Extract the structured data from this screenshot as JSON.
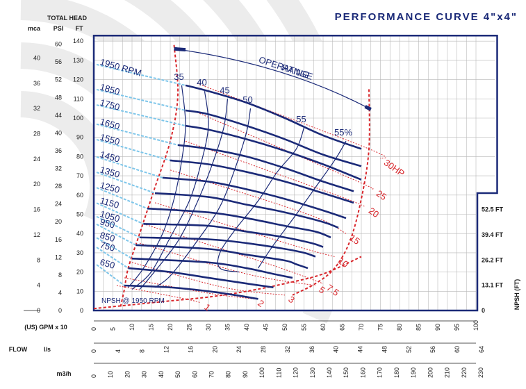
{
  "chart_data": {
    "type": "line",
    "title": "PERFORMANCE CURVE  4\"x4\"",
    "axis_headers": {
      "total_head": "TOTAL HEAD",
      "mca": "mca",
      "psi": "PSI",
      "ft": "FT",
      "flow": "FLOW",
      "gpm": "(US) GPM  x 10",
      "ls": "l/s",
      "m3h": "m3/h",
      "npsh": "NPSH (FT)"
    },
    "head_ft_ticks": [
      0,
      10,
      20,
      30,
      40,
      50,
      60,
      70,
      80,
      90,
      100,
      110,
      120,
      130,
      140
    ],
    "psi_ticks": [
      0,
      4,
      8,
      12,
      16,
      20,
      24,
      28,
      32,
      36,
      40,
      44,
      48,
      52,
      56,
      60
    ],
    "mca_ticks": [
      0,
      4,
      8,
      12,
      16,
      20,
      24,
      28,
      32,
      36,
      40
    ],
    "gpm_ticks": [
      0,
      5,
      10,
      15,
      20,
      25,
      30,
      35,
      40,
      45,
      50,
      55,
      60,
      65,
      70,
      75,
      80,
      85,
      90,
      95,
      100
    ],
    "ls_ticks": [
      0,
      4,
      8,
      12,
      16,
      20,
      24,
      28,
      32,
      36,
      40,
      44,
      48,
      52,
      56,
      60,
      64
    ],
    "m3h_ticks": [
      0,
      10,
      20,
      30,
      40,
      50,
      60,
      70,
      80,
      90,
      100,
      110,
      120,
      130,
      140,
      150,
      160,
      170,
      180,
      190,
      200,
      210,
      220,
      230
    ],
    "npsh_ticks": [
      {
        "label": "52.5 FT",
        "value": 52.5
      },
      {
        "label": "39.4 FT",
        "value": 39.4
      },
      {
        "label": "26.2 FT",
        "value": 26.2
      },
      {
        "label": "13.1 FT",
        "value": 13.1
      },
      {
        "label": "0",
        "value": 0
      }
    ],
    "operating_range_label": [
      "OPERATING",
      "RANGE"
    ],
    "npsh_label": "NPSH @ 1950 RPM",
    "rpm_curves": [
      {
        "label": "1950 RPM",
        "x": [
          24,
          30,
          40,
          50,
          60,
          70
        ],
        "y": [
          117,
          114,
          108,
          100,
          91,
          84
        ]
      },
      {
        "label": "1850",
        "x": [
          24,
          30,
          40,
          50,
          60,
          70
        ],
        "y": [
          104,
          102,
          96,
          89,
          81,
          75
        ]
      },
      {
        "label": "1750",
        "x": [
          24,
          30,
          40,
          50,
          60,
          70
        ],
        "y": [
          96,
          94,
          89,
          83,
          76,
          68
        ]
      },
      {
        "label": "1650",
        "x": [
          22,
          30,
          40,
          50,
          60,
          68
        ],
        "y": [
          86,
          84,
          80,
          74,
          67,
          62
        ]
      },
      {
        "label": "1550",
        "x": [
          20,
          30,
          40,
          50,
          60,
          68
        ],
        "y": [
          78,
          76,
          72,
          67,
          61,
          56
        ]
      },
      {
        "label": "1450",
        "x": [
          18,
          30,
          40,
          50,
          60,
          66
        ],
        "y": [
          69,
          67,
          63,
          58,
          52,
          48
        ]
      },
      {
        "label": "1350",
        "x": [
          16,
          30,
          40,
          50,
          60,
          64
        ],
        "y": [
          61,
          59,
          55,
          51,
          46,
          43
        ]
      },
      {
        "label": "1250",
        "x": [
          14,
          30,
          40,
          50,
          58,
          62
        ],
        "y": [
          53,
          51,
          48,
          44,
          41,
          38
        ]
      },
      {
        "label": "1150",
        "x": [
          13,
          30,
          40,
          50,
          57,
          60
        ],
        "y": [
          45,
          44,
          41,
          38,
          35,
          33
        ]
      },
      {
        "label": "1050",
        "x": [
          12,
          30,
          40,
          50,
          55,
          58
        ],
        "y": [
          38,
          37,
          35,
          32,
          30,
          28
        ]
      },
      {
        "label": "950",
        "x": [
          11,
          30,
          40,
          50,
          53,
          56
        ],
        "y": [
          34,
          32,
          29,
          26,
          24,
          22
        ]
      },
      {
        "label": "850",
        "x": [
          10,
          30,
          40,
          47,
          52
        ],
        "y": [
          27,
          25,
          22,
          19,
          17
        ]
      },
      {
        "label": "750",
        "x": [
          9,
          20,
          30,
          40,
          47
        ],
        "y": [
          22,
          20,
          17,
          14,
          12
        ]
      },
      {
        "label": "650",
        "x": [
          8,
          20,
          30,
          37,
          43
        ],
        "y": [
          13,
          12,
          10,
          8,
          6
        ]
      }
    ],
    "efficiency_curves": [
      {
        "label": "35",
        "x": [
          23,
          24,
          23,
          21,
          18,
          13,
          9
        ],
        "y": [
          117,
          97,
          78,
          58,
          40,
          22,
          12
        ]
      },
      {
        "label": "40",
        "x": [
          29,
          30,
          28,
          25,
          20,
          15,
          10
        ],
        "y": [
          114,
          96,
          76,
          57,
          38,
          20,
          11
        ]
      },
      {
        "label": "45",
        "x": [
          35,
          34,
          31,
          27,
          22,
          15,
          12
        ],
        "y": [
          110,
          95,
          76,
          56,
          36,
          18,
          11
        ]
      },
      {
        "label": "50",
        "x": [
          41,
          40,
          37,
          33,
          27,
          20,
          16
        ],
        "y": [
          105,
          93,
          74,
          54,
          36,
          18,
          12
        ]
      },
      {
        "label": "55",
        "x": [
          55,
          53,
          48,
          43,
          37,
          33,
          33,
          38
        ],
        "y": [
          95,
          84,
          72,
          57,
          42,
          30,
          22,
          20
        ]
      },
      {
        "label": "55%",
        "x": [
          66,
          63,
          58,
          53,
          47,
          43
        ],
        "y": [
          88,
          78,
          64,
          50,
          34,
          22
        ]
      }
    ],
    "hp_curves": [
      {
        "label": "30HP",
        "x": [
          27,
          72,
          75
        ],
        "y": [
          118,
          84,
          79
        ]
      },
      {
        "label": "25",
        "x": [
          27,
          68,
          73
        ],
        "y": [
          103,
          68,
          63
        ]
      },
      {
        "label": "20",
        "x": [
          24,
          62,
          71
        ],
        "y": [
          88,
          61,
          54
        ]
      },
      {
        "label": "15",
        "x": [
          20,
          56,
          66
        ],
        "y": [
          73,
          50,
          40
        ]
      },
      {
        "label": "10",
        "x": [
          16,
          52,
          63
        ],
        "y": [
          56,
          34,
          28
        ]
      },
      {
        "label": "7.5",
        "x": [
          13,
          46,
          60
        ],
        "y": [
          45,
          24,
          14
        ]
      },
      {
        "label": "5",
        "x": [
          12,
          40,
          58
        ],
        "y": [
          35,
          19,
          13
        ]
      },
      {
        "label": "3",
        "x": [
          10,
          34,
          50
        ],
        "y": [
          25,
          12,
          8
        ]
      },
      {
        "label": "2",
        "x": [
          8,
          30,
          42
        ],
        "y": [
          17,
          9,
          6
        ]
      },
      {
        "label": "1",
        "x": [
          6,
          24,
          28
        ],
        "y": [
          13,
          6,
          4
        ]
      }
    ],
    "npsh_curve": {
      "x": [
        0,
        10,
        20,
        30,
        40,
        50,
        60,
        70
      ],
      "y": [
        1,
        3,
        5,
        7,
        10,
        14,
        19,
        28
      ]
    },
    "xlim": [
      0,
      100
    ],
    "ylim": [
      0,
      140
    ],
    "colors": {
      "curve": "#1b2a78",
      "power": "#d8262b",
      "frame": "#1b2a78",
      "grid": "#b8b8b8",
      "speed_dash": "#7ec6ea",
      "watermark": "#ececec"
    }
  }
}
